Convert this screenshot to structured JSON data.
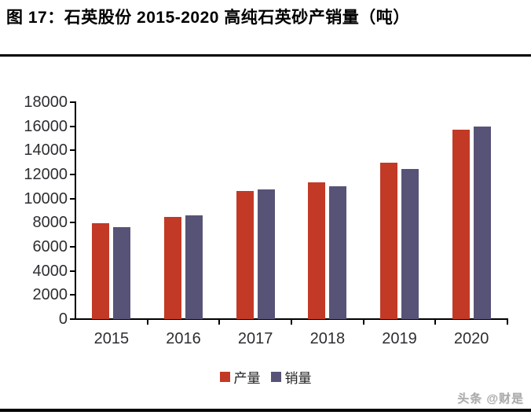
{
  "figure": {
    "title": "图 17：石英股份 2015-2020 高纯石英砂产销量（吨）",
    "watermark": "头条 @财是"
  },
  "chart_data": {
    "type": "bar",
    "title": "石英股份 2015-2020 高纯石英砂产销量（吨）",
    "categories": [
      "2015",
      "2016",
      "2017",
      "2018",
      "2019",
      "2020"
    ],
    "series": [
      {
        "key": "production",
        "name": "产量",
        "color": "#c23a26",
        "values": [
          7950,
          8500,
          10600,
          11350,
          12950,
          15700
        ]
      },
      {
        "key": "sales",
        "name": "销量",
        "color": "#575377",
        "values": [
          7650,
          8600,
          10750,
          11050,
          12450,
          16000
        ]
      }
    ],
    "xlabel": "",
    "ylabel": "",
    "ylim": [
      0,
      18000
    ],
    "ytick_step": 2000,
    "ytick_labels": [
      "18000",
      "16000",
      "14000",
      "12000",
      "10000",
      "8000",
      "6000",
      "4000",
      "2000",
      "0"
    ],
    "grid": false,
    "legend_position": "bottom"
  },
  "colors": {
    "axis": "#000000",
    "tick_label": "#2e2e33",
    "divider": "#000000",
    "watermark": "#a9a9a9"
  }
}
